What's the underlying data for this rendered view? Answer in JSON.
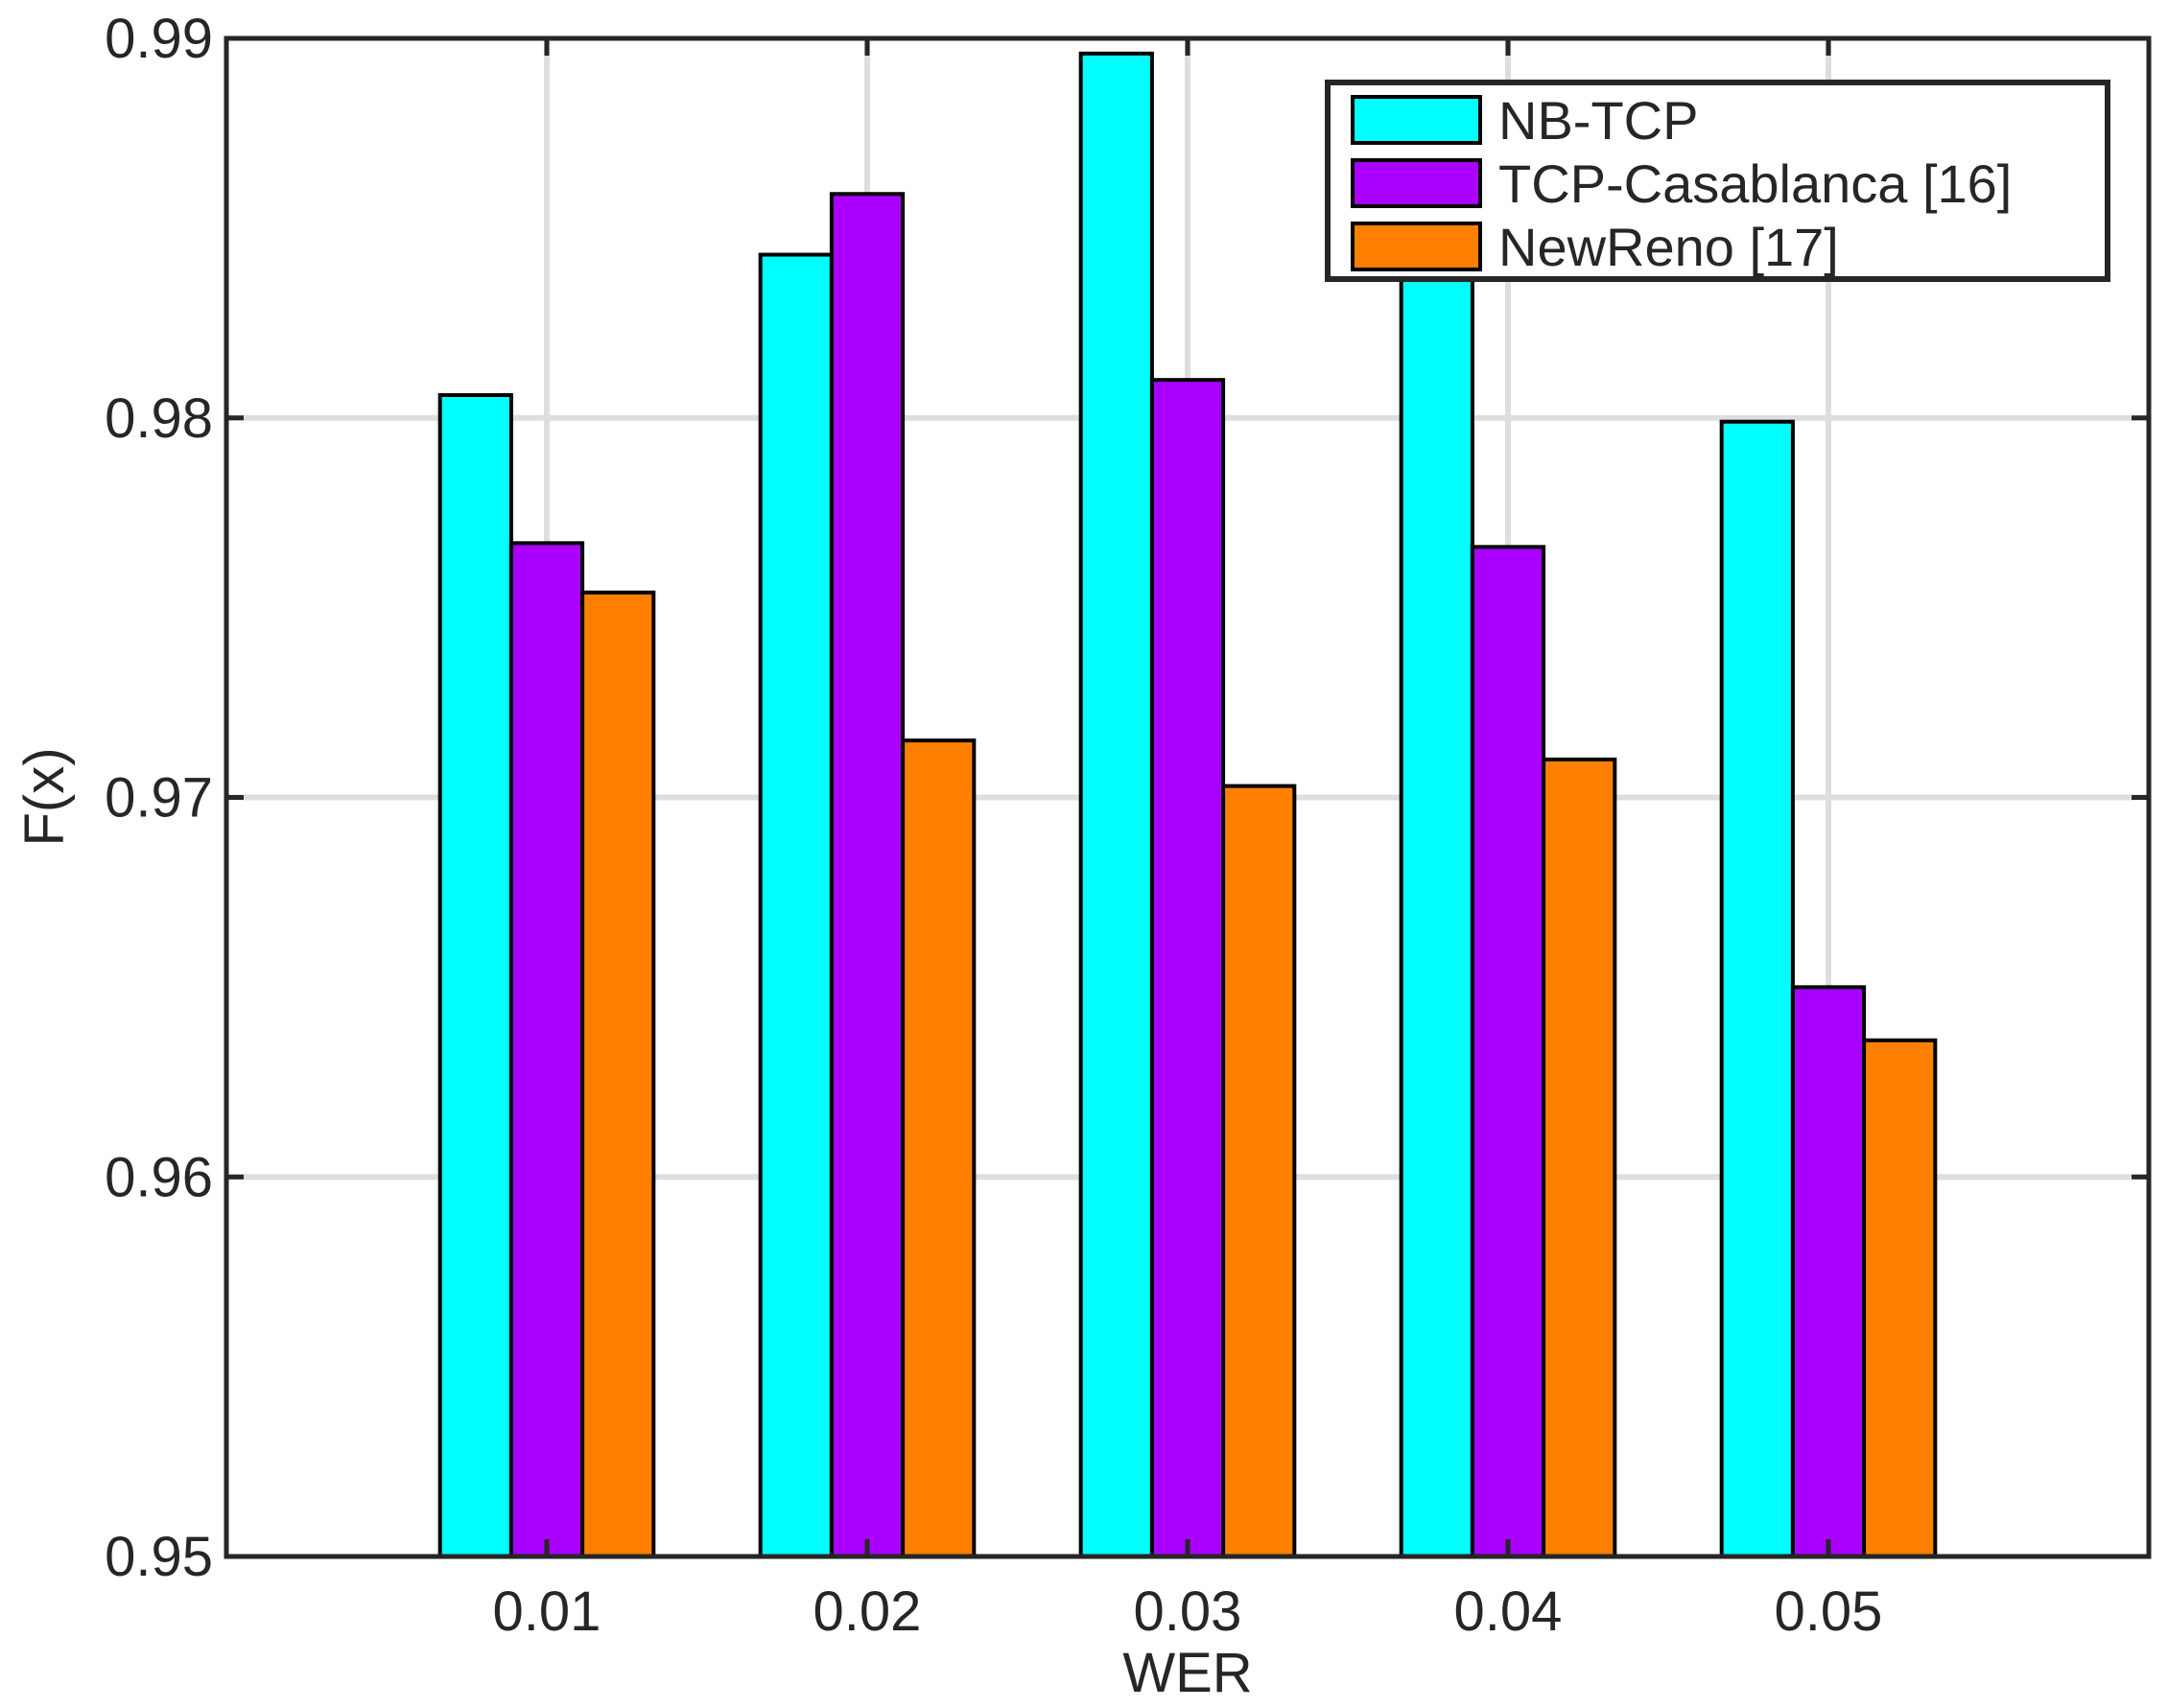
{
  "chart_data": {
    "type": "bar",
    "title": "",
    "xlabel": "WER",
    "ylabel": "F(x)",
    "categories": [
      "0.01",
      "0.02",
      "0.03",
      "0.04",
      "0.05"
    ],
    "x_limits": [
      0,
      6
    ],
    "ylim": [
      0.95,
      0.99
    ],
    "yticks": [
      "0.95",
      "0.96",
      "0.97",
      "0.98",
      "0.99"
    ],
    "grid": true,
    "legend_position": "top-right",
    "series": [
      {
        "name": "NB-TCP",
        "color": "#00FFFF",
        "values": [
          0.9806,
          0.9843,
          0.9896,
          0.9838,
          0.9799
        ]
      },
      {
        "name": "TCP-Casablanca [16]",
        "color": "#AA00FF",
        "values": [
          0.9767,
          0.9859,
          0.981,
          0.9766,
          0.965
        ]
      },
      {
        "name": "NewReno [17]",
        "color": "#FF8000",
        "values": [
          0.9754,
          0.9715,
          0.9703,
          0.971,
          0.9636
        ]
      }
    ]
  }
}
